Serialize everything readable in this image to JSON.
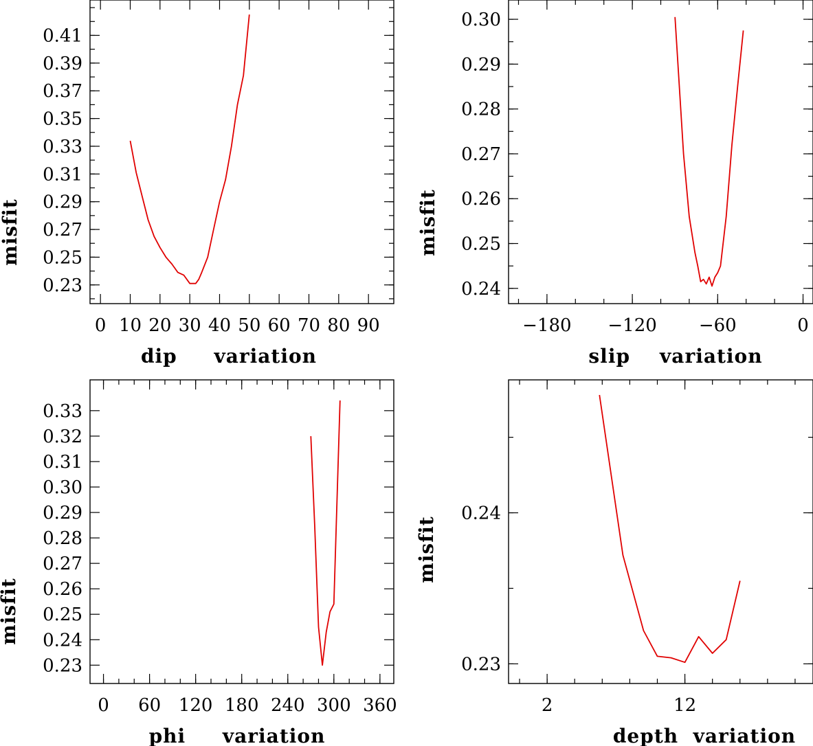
{
  "chart_data": [
    {
      "id": "dip",
      "type": "line",
      "xlabel": "dip     variation",
      "ylabel": "misfit",
      "xlim": [
        -3.5,
        98.5
      ],
      "ylim": [
        0.2165,
        0.4355
      ],
      "xticks": [
        0,
        10,
        20,
        30,
        40,
        50,
        60,
        70,
        80,
        90
      ],
      "xtick_labels": [
        "0",
        "10",
        "20",
        "30",
        "40",
        "50",
        "60",
        "70",
        "80",
        "90"
      ],
      "yticks": [
        0.23,
        0.25,
        0.27,
        0.29,
        0.31,
        0.33,
        0.35,
        0.37,
        0.39,
        0.41
      ],
      "ytick_labels": [
        "0.23",
        "0.25",
        "0.27",
        "0.29",
        "0.31",
        "0.33",
        "0.35",
        "0.37",
        "0.39",
        "0.41"
      ],
      "yminor": 0.01,
      "series": [
        {
          "color": "#e00000",
          "x": [
            10,
            12,
            14,
            16,
            18,
            20,
            22,
            24,
            26,
            28,
            30,
            32,
            33,
            34,
            36,
            38,
            40,
            42,
            44,
            46,
            48,
            50
          ],
          "y": [
            0.334,
            0.311,
            0.294,
            0.277,
            0.265,
            0.257,
            0.25,
            0.245,
            0.239,
            0.237,
            0.231,
            0.231,
            0.234,
            0.239,
            0.25,
            0.27,
            0.29,
            0.306,
            0.33,
            0.36,
            0.381,
            0.425
          ]
        }
      ]
    },
    {
      "id": "slip",
      "type": "line",
      "xlabel": "slip    variation",
      "ylabel": "misfit",
      "xlim": [
        -207,
        7
      ],
      "ylim": [
        0.2366,
        0.3043
      ],
      "xticks": [
        -180,
        -120,
        -60,
        0
      ],
      "xtick_labels": [
        "−180",
        "−120",
        "−60",
        "0"
      ],
      "xminor": 20,
      "yticks": [
        0.24,
        0.25,
        0.26,
        0.27,
        0.28,
        0.29,
        0.3
      ],
      "ytick_labels": [
        "0.24",
        "0.25",
        "0.26",
        "0.27",
        "0.28",
        "0.29",
        "0.30"
      ],
      "yminor": 0.005,
      "series": [
        {
          "color": "#e00000",
          "x": [
            -90,
            -84,
            -80,
            -76,
            -74,
            -72,
            -70,
            -68,
            -66,
            -64,
            -62,
            -60,
            -58,
            -54,
            -50,
            -46,
            -42
          ],
          "y": [
            0.3005,
            0.27,
            0.256,
            0.248,
            0.245,
            0.2415,
            0.242,
            0.241,
            0.2425,
            0.2405,
            0.2425,
            0.2435,
            0.245,
            0.256,
            0.272,
            0.285,
            0.2975
          ]
        }
      ]
    },
    {
      "id": "phi",
      "type": "line",
      "xlabel": "phi     variation",
      "ylabel": "misfit",
      "xlim": [
        -17.5,
        378
      ],
      "ylim": [
        0.2228,
        0.3421
      ],
      "xticks": [
        0,
        60,
        120,
        180,
        240,
        300,
        360
      ],
      "xtick_labels": [
        "0",
        "60",
        "120",
        "180",
        "240",
        "300",
        "360"
      ],
      "xminor": 20,
      "yticks": [
        0.23,
        0.24,
        0.25,
        0.26,
        0.27,
        0.28,
        0.29,
        0.3,
        0.31,
        0.32,
        0.33
      ],
      "ytick_labels": [
        "0.23",
        "0.24",
        "0.25",
        "0.26",
        "0.27",
        "0.28",
        "0.29",
        "0.30",
        "0.31",
        "0.32",
        "0.33"
      ],
      "series": [
        {
          "color": "#e00000",
          "x": [
            270,
            275,
            280,
            285,
            290,
            295,
            300,
            308
          ],
          "y": [
            0.32,
            0.285,
            0.245,
            0.23,
            0.243,
            0.251,
            0.254,
            0.334
          ]
        }
      ]
    },
    {
      "id": "depth",
      "type": "line",
      "xlabel": "depth  variation",
      "ylabel": "misfit",
      "xlim": [
        -0.8,
        21.3
      ],
      "ylim": [
        0.2287,
        0.2488
      ],
      "xticks": [
        2,
        12
      ],
      "xtick_labels": [
        "2",
        "12"
      ],
      "xminor": 2,
      "yticks": [
        0.23,
        0.24
      ],
      "ytick_labels": [
        "0.23",
        "0.24"
      ],
      "yminor": 0.005,
      "series": [
        {
          "color": "#e00000",
          "x": [
            5.8,
            7.5,
            9,
            10,
            11,
            12,
            13,
            14,
            15,
            16
          ],
          "y": [
            0.2478,
            0.2372,
            0.2322,
            0.2305,
            0.2304,
            0.2301,
            0.2318,
            0.2307,
            0.2316,
            0.2355
          ]
        }
      ]
    }
  ]
}
